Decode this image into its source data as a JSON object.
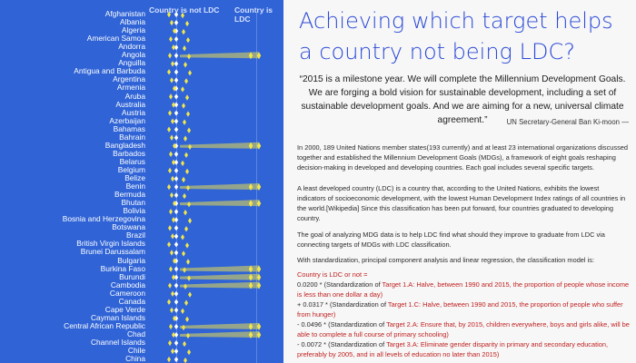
{
  "viz": {
    "header_not_ldc": "Country is not LDC",
    "header_ldc": "Country is LDC",
    "countries": [
      "Afghanistan",
      "Albania",
      "Algeria",
      "American Samoa",
      "Andorra",
      "Angola",
      "Anguilla",
      "Antigua and Barbuda",
      "Argentina",
      "Armenia",
      "Aruba",
      "Australia",
      "Austria",
      "Azerbaijan",
      "Bahamas",
      "Bahrain",
      "Bangladesh",
      "Barbados",
      "Belarus",
      "Belgium",
      "Belize",
      "Benin",
      "Bermuda",
      "Bhutan",
      "Bolivia",
      "Bosnia and Herzegovina",
      "Botswana",
      "Brazil",
      "British Virgin Islands",
      "Brunei Darussalam",
      "Bulgaria",
      "Burkina Faso",
      "Burundi",
      "Cambodia",
      "Cameroon",
      "Canada",
      "Cape Verde",
      "Cayman Islands",
      "Central African Republic",
      "Chad",
      "Channel Islands",
      "Chile",
      "China"
    ],
    "colors": {
      "background": "#2f63d6",
      "marker": "#f2e64a",
      "marker_white": "#ffffff",
      "band": "#e8dd4e"
    }
  },
  "article": {
    "title": "Achieving which target helps a country not being LDC?",
    "quote": "“2015 is a milestone year. We will complete the Millennium Development Goals. We are forging a bold vision for sustainable development, including a set of sustainable development goals. And we are aiming for a new, universal climate agreement.”",
    "quote_cite": "UN Secretary-General Ban Ki-moon —",
    "p1": "In 2000, 189 United Nations member states(193 currently) and at least 23 international organizations discussed together and established the Millennium Development Goals (MDGs), a framework of eight goals reshaping decision-making in developed and developing countries. Each goal includes several specific targets.",
    "p2": "A least developed country (LDC) is a country that, according to the United Nations, exhibits the lowest indicators of socioeconomic development, with the lowest Human Development Index ratings of all countries in the world.[Wikipedia] Since this classification has been put forward, four countries graduated to developing country.",
    "p3": "The goal of analyzing MDG data is to help LDC find what should they improve to graduate from LDC via connecting targets of MDGs with LDC classification.",
    "p4": "With standardization, principal component analysis and linear regression, the classification model is:",
    "model_head": "Country is LDC or not =",
    "m1_coef": "0.0200 * (Standardization of ",
    "m1_target": "Target 1.A: Halve, between 1990 and 2015, the proportion of people whose income is less than one dollar a day)",
    "m2_coef": "+ 0.0317 * (Standardization of ",
    "m2_target": "Target 1.C: Halve, between 1990 and 2015, the proportion of people who suffer from hunger)",
    "m3_coef": "- 0.0496 * (Standardization of ",
    "m3_target": "Target 2.A: Ensure that, by 2015, children everywhere, boys and girls alike, will be able to complete a full course of primary schooling)",
    "m4_coef": "- 0.0072 * (Standardization of ",
    "m4_target": "Target 3.A: Eliminate gender disparity in primary and secondary education, preferably by 2005, and in all levels of education no later than 2015)",
    "colors": {
      "title": "#2a49d6",
      "target_red": "#c02020"
    }
  }
}
